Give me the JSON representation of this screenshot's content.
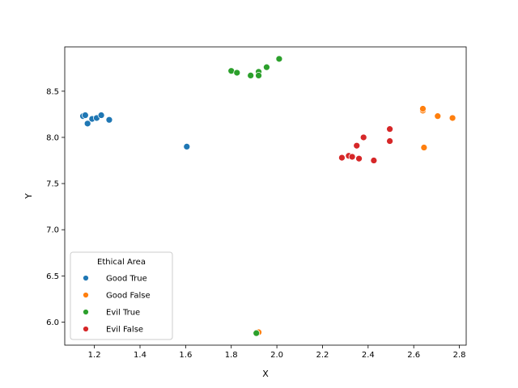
{
  "chart_data": {
    "type": "scatter",
    "xlabel": "X",
    "ylabel": "Y",
    "xlim": [
      1.07,
      2.83
    ],
    "ylim": [
      5.75,
      8.98
    ],
    "xticks": [
      1.2,
      1.4,
      1.6,
      1.8,
      2.0,
      2.2,
      2.4,
      2.6,
      2.8
    ],
    "xtick_labels": [
      "1.2",
      "1.4",
      "1.6",
      "1.8",
      "2.0",
      "2.2",
      "2.4",
      "2.6",
      "2.8"
    ],
    "yticks": [
      6.0,
      6.5,
      7.0,
      7.5,
      8.0,
      8.5
    ],
    "ytick_labels": [
      "6.0",
      "6.5",
      "7.0",
      "7.5",
      "8.0",
      "8.5"
    ],
    "grid": false,
    "legend": {
      "title": "Ethical Area",
      "placement": "lower-left"
    },
    "series": [
      {
        "name": "Good True",
        "color": "#1f77b4",
        "points": [
          [
            1.15,
            8.23
          ],
          [
            1.16,
            8.24
          ],
          [
            1.17,
            8.15
          ],
          [
            1.19,
            8.2
          ],
          [
            1.21,
            8.21
          ],
          [
            1.23,
            8.24
          ],
          [
            1.265,
            8.19
          ],
          [
            1.605,
            7.9
          ]
        ]
      },
      {
        "name": "Good False",
        "color": "#ff7f0e",
        "points": [
          [
            1.92,
            5.89
          ],
          [
            2.64,
            8.29
          ],
          [
            2.64,
            8.31
          ],
          [
            2.645,
            7.89
          ],
          [
            2.705,
            8.23
          ],
          [
            2.77,
            8.21
          ]
        ]
      },
      {
        "name": "Evil True",
        "color": "#2ca02c",
        "points": [
          [
            1.91,
            5.88
          ],
          [
            1.8,
            8.72
          ],
          [
            1.825,
            8.7
          ],
          [
            1.885,
            8.67
          ],
          [
            1.92,
            8.71
          ],
          [
            1.92,
            8.67
          ],
          [
            1.955,
            8.76
          ],
          [
            2.01,
            8.85
          ]
        ]
      },
      {
        "name": "Evil False",
        "color": "#d62728",
        "points": [
          [
            2.285,
            7.78
          ],
          [
            2.315,
            7.8
          ],
          [
            2.33,
            7.79
          ],
          [
            2.35,
            7.91
          ],
          [
            2.36,
            7.77
          ],
          [
            2.38,
            8.0
          ],
          [
            2.425,
            7.75
          ],
          [
            2.495,
            8.09
          ],
          [
            2.495,
            7.96
          ]
        ]
      }
    ]
  }
}
